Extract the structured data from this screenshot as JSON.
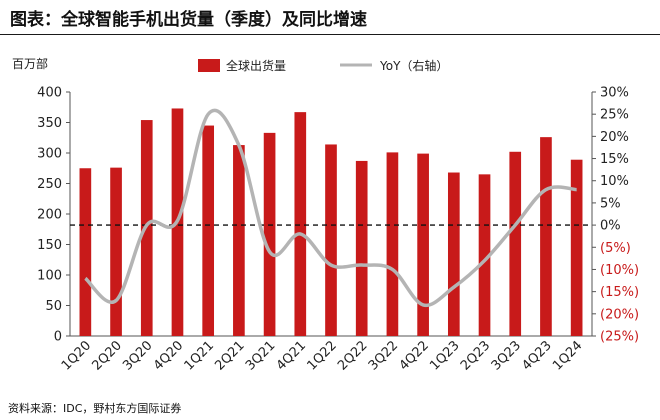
{
  "title": "图表：全球智能手机出货量（季度）及同比增速",
  "source": "资料来源：IDC，野村东方国际证券",
  "chart_data": {
    "type": "bar",
    "y_unit_label": "百万部",
    "categories": [
      "1Q20",
      "2Q20",
      "3Q20",
      "4Q20",
      "1Q21",
      "2Q21",
      "3Q21",
      "4Q21",
      "1Q22",
      "2Q22",
      "3Q22",
      "4Q22",
      "1Q23",
      "2Q23",
      "3Q23",
      "4Q23",
      "1Q24"
    ],
    "series": [
      {
        "name": "全球出货量",
        "type": "bar",
        "axis": "left",
        "color": "#c81a1a",
        "values": [
          275,
          276,
          354,
          373,
          345,
          313,
          333,
          367,
          314,
          287,
          301,
          299,
          268,
          265,
          302,
          326,
          289
        ]
      },
      {
        "name": "YoY（右轴）",
        "type": "line",
        "axis": "right",
        "color": "#b4b4b4",
        "values": [
          -12,
          -17,
          0,
          1,
          25,
          18,
          -6,
          -2,
          -9,
          -9,
          -10,
          -18,
          -14,
          -8,
          0,
          8,
          8
        ]
      }
    ],
    "ylim_left": [
      0,
      400
    ],
    "yticks_left": [
      "0",
      "50",
      "100",
      "150",
      "200",
      "250",
      "300",
      "350",
      "400"
    ],
    "ylim_right": [
      -25,
      30
    ],
    "yticks_right": [
      {
        "v": 30,
        "label": "30%"
      },
      {
        "v": 25,
        "label": "25%"
      },
      {
        "v": 20,
        "label": "20%"
      },
      {
        "v": 15,
        "label": "15%"
      },
      {
        "v": 10,
        "label": "10%"
      },
      {
        "v": 5,
        "label": "5%"
      },
      {
        "v": 0,
        "label": "0%"
      },
      {
        "v": -5,
        "label": "(5%)"
      },
      {
        "v": -10,
        "label": "(10%)"
      },
      {
        "v": -15,
        "label": "(15%)"
      },
      {
        "v": -20,
        "label": "(20%)"
      },
      {
        "v": -25,
        "label": "(25%)"
      }
    ],
    "zero_line": "dashed",
    "legend_position": "top",
    "grid": false,
    "colors": {
      "bar": "#c81a1a",
      "line": "#b4b4b4",
      "negative_label": "#c81a1a",
      "axis_text": "#222222"
    }
  }
}
